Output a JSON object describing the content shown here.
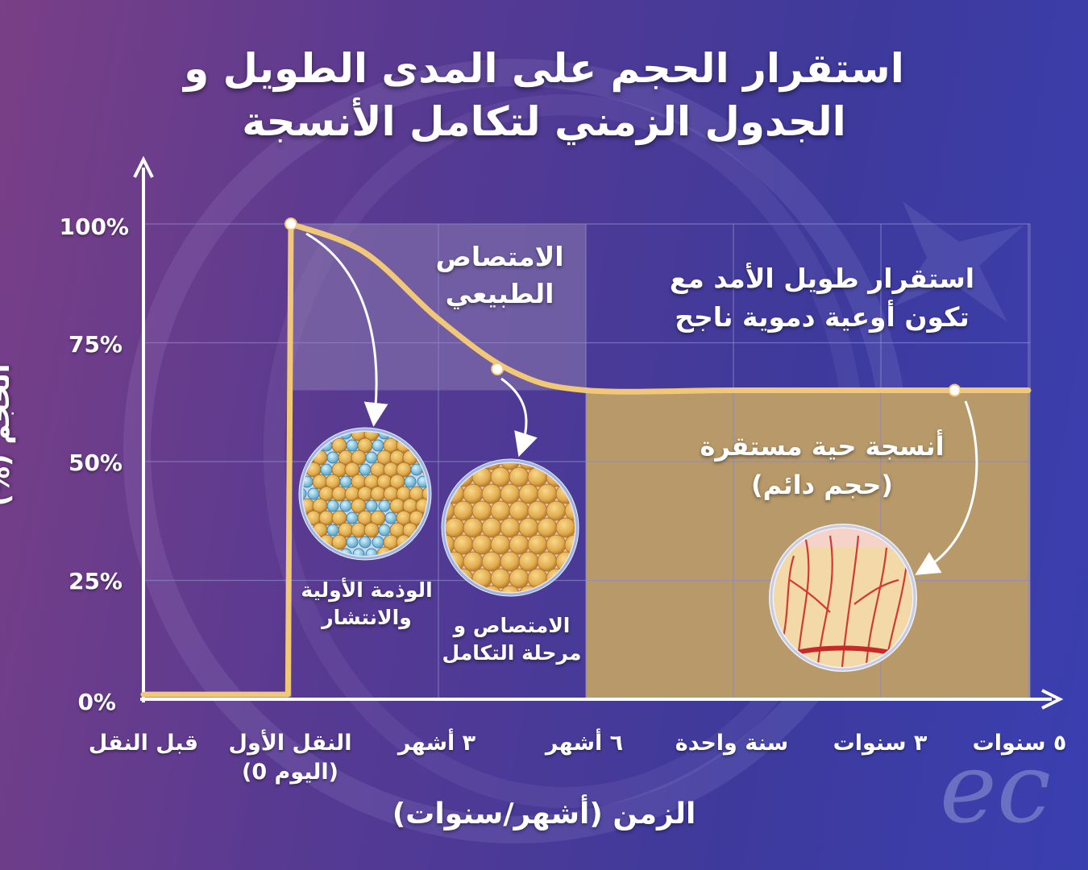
{
  "title_lines": [
    "استقرار الحجم على المدى الطويل و",
    "الجدول الزمني لتكامل الأنسجة"
  ],
  "colors": {
    "background": "#4a3a96",
    "curve": "#f0c878",
    "stable_fill": "#b89a6a",
    "resorption_fill": "#8a7aae",
    "grid": "#8a88c8",
    "text": "#ffffff"
  },
  "annotations": {
    "natural_resorption": [
      "الامتصاص",
      "الطبيعي"
    ],
    "long_term_stability": [
      "استقرار طويل الأمد مع",
      "تكون أوعية دموية ناجح"
    ],
    "stable_tissue": [
      "أنسجة حية مستقرة",
      "(حجم دائم)"
    ],
    "initial_swelling": [
      "الوذمة الأولية",
      "والانتشار"
    ],
    "resorption_integration": [
      "الامتصاص و",
      "مرحلة التكامل"
    ]
  },
  "icons": {
    "swelling_circle": "fat-cells-with-fluid-icon",
    "integration_circle": "fat-cells-integrating-icon",
    "stable_circle": "vascularized-tissue-icon",
    "logo": "ec"
  },
  "chart_data": {
    "type": "line",
    "title": "استقرار الحجم على المدى الطويل و الجدول الزمني لتكامل الأنسجة",
    "xlabel": "الزمن (أشهر/سنوات)",
    "ylabel": "الحجم (%)",
    "categories": [
      [
        "قبل النقل"
      ],
      [
        "النقل الأول",
        "(اليوم 0)"
      ],
      [
        "٣ أشهر"
      ],
      [
        "٦ أشهر"
      ],
      [
        "سنة واحدة"
      ],
      [
        "٣ سنوات"
      ],
      [
        "٥ سنوات"
      ]
    ],
    "y_ticks": [
      "100%",
      "75%",
      "50%",
      "25%",
      "0%"
    ],
    "ylim": [
      0,
      100
    ],
    "grid": true,
    "series": [
      {
        "values_points": [
          {
            "x": 0,
            "y": 1
          },
          {
            "x": 0.98,
            "y": 1
          },
          {
            "x": 1,
            "y": 100
          },
          {
            "x": 1.5,
            "y": 94
          },
          {
            "x": 2,
            "y": 80
          },
          {
            "x": 2.5,
            "y": 69
          },
          {
            "x": 3,
            "y": 65
          },
          {
            "x": 4,
            "y": 65
          },
          {
            "x": 5,
            "y": 65
          },
          {
            "x": 6,
            "y": 65
          }
        ]
      }
    ],
    "marked_points": [
      {
        "x": 1,
        "y": 100
      },
      {
        "x": 2.4,
        "y": 69.5
      },
      {
        "x": 5.5,
        "y": 65
      }
    ]
  }
}
